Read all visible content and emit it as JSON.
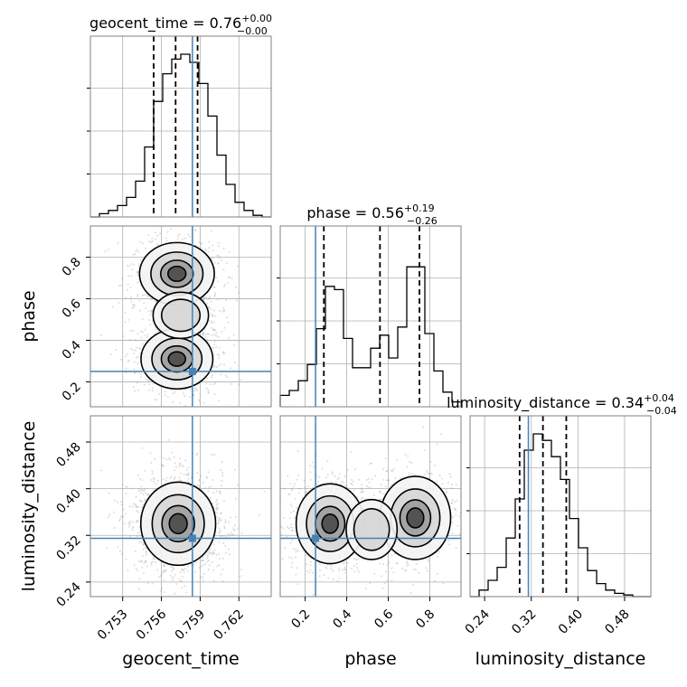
{
  "chart_data": {
    "type": "corner",
    "parameters": [
      "geocent_time",
      "phase",
      "luminosity_distance"
    ],
    "titles": [
      {
        "text": "geocent_time = 0.76",
        "sup": "+0.00",
        "sub": "−0.00"
      },
      {
        "text": "phase = 0.56",
        "sup": "+0.19",
        "sub": "−0.26"
      },
      {
        "text": "luminosity_distance = 0.34",
        "sup": "+0.04",
        "sub": "−0.04"
      }
    ],
    "axis_labels": {
      "geocent_time": "geocent_time",
      "phase": "phase",
      "luminosity_distance": "luminosity_distance"
    },
    "ranges": {
      "geocent_time": [
        0.7505,
        0.7645
      ],
      "phase": [
        0.08,
        0.95
      ],
      "luminosity_distance": [
        0.215,
        0.525
      ]
    },
    "ticks": {
      "geocent_time": [
        "0.753",
        "0.756",
        "0.759",
        "0.762"
      ],
      "phase": [
        "0.2",
        "0.4",
        "0.6",
        "0.8"
      ],
      "luminosity_distance": [
        "0.24",
        "0.32",
        "0.40",
        "0.48"
      ]
    },
    "tick_values": {
      "geocent_time": [
        0.753,
        0.756,
        0.759,
        0.762
      ],
      "phase": [
        0.2,
        0.4,
        0.6,
        0.8
      ],
      "luminosity_distance": [
        0.24,
        0.32,
        0.4,
        0.48
      ]
    },
    "truths": {
      "geocent_time": 0.7584,
      "phase": 0.25,
      "luminosity_distance": 0.315
    },
    "quantiles": {
      "geocent_time": [
        0.7554,
        0.7571,
        0.7588
      ],
      "phase": [
        0.29,
        0.56,
        0.75
      ],
      "luminosity_distance": [
        0.3,
        0.34,
        0.38
      ]
    },
    "histograms": {
      "geocent_time": {
        "edges": [
          0.7505,
          0.7512,
          0.7519,
          0.7526,
          0.7533,
          0.754,
          0.7547,
          0.7554,
          0.7561,
          0.7568,
          0.7575,
          0.7582,
          0.7589,
          0.7596,
          0.7603,
          0.761,
          0.7617,
          0.7624,
          0.7631,
          0.7638,
          0.7645
        ],
        "counts": [
          0.0,
          0.02,
          0.04,
          0.07,
          0.12,
          0.22,
          0.43,
          0.71,
          0.88,
          0.97,
          1.0,
          0.95,
          0.82,
          0.62,
          0.38,
          0.2,
          0.09,
          0.04,
          0.01,
          0.0
        ]
      },
      "phase": {
        "edges": [
          0.08,
          0.1235,
          0.167,
          0.2105,
          0.254,
          0.2975,
          0.341,
          0.3845,
          0.428,
          0.4715,
          0.515,
          0.5585,
          0.602,
          0.6455,
          0.689,
          0.7325,
          0.776,
          0.8195,
          0.863,
          0.9065,
          0.95
        ],
        "counts": [
          0.07,
          0.1,
          0.16,
          0.26,
          0.48,
          0.74,
          0.72,
          0.42,
          0.24,
          0.24,
          0.36,
          0.44,
          0.3,
          0.49,
          0.86,
          0.86,
          0.45,
          0.22,
          0.09,
          0.03
        ]
      },
      "luminosity_distance": {
        "edges": [
          0.215,
          0.2305,
          0.246,
          0.2615,
          0.277,
          0.2925,
          0.308,
          0.3235,
          0.339,
          0.3545,
          0.37,
          0.3855,
          0.401,
          0.4165,
          0.432,
          0.4475,
          0.463,
          0.4785,
          0.494,
          0.5095,
          0.525
        ],
        "counts": [
          0.0,
          0.04,
          0.1,
          0.18,
          0.36,
          0.6,
          0.9,
          1.0,
          0.96,
          0.86,
          0.72,
          0.48,
          0.3,
          0.16,
          0.08,
          0.04,
          0.02,
          0.01,
          0.0,
          0.0
        ]
      }
    },
    "density_modes": {
      "phase_vs_geocent_time": [
        {
          "x": 0.7572,
          "y": 0.72,
          "weight": 1.0
        },
        {
          "x": 0.7572,
          "y": 0.31,
          "weight": 0.9
        },
        {
          "x": 0.7575,
          "y": 0.52,
          "weight": 0.35
        }
      ],
      "luminosity_distance_vs_geocent_time": [
        {
          "x": 0.7573,
          "y": 0.34,
          "weight": 1.0
        }
      ],
      "luminosity_distance_vs_phase": [
        {
          "x": 0.32,
          "y": 0.34,
          "weight": 0.9
        },
        {
          "x": 0.73,
          "y": 0.35,
          "weight": 1.0
        },
        {
          "x": 0.52,
          "y": 0.33,
          "weight": 0.3
        }
      ]
    },
    "grid": true,
    "truth_color": "#4682b4",
    "quantile_color": "#000000"
  }
}
